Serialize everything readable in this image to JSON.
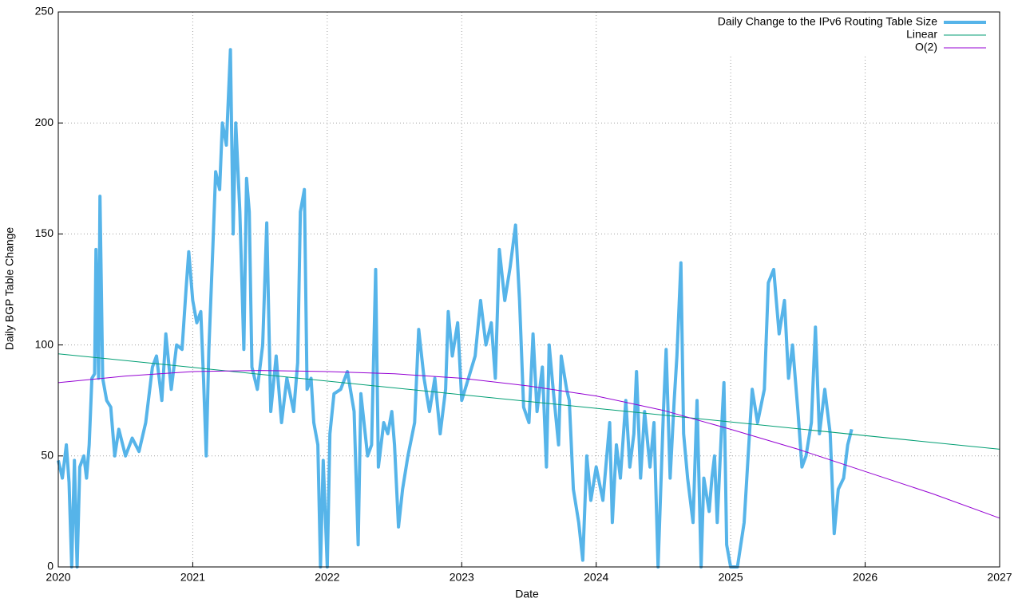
{
  "chart_data": {
    "type": "line",
    "xlabel": "Date",
    "ylabel": "Daily BGP Table Change",
    "xlim": [
      2020,
      2027
    ],
    "xticks": [
      2020,
      2021,
      2022,
      2023,
      2024,
      2025,
      2026,
      2027
    ],
    "ylim": [
      0,
      250
    ],
    "yticks": [
      0,
      50,
      100,
      150,
      200,
      250
    ],
    "grid": true,
    "legend": "top-right",
    "series": [
      {
        "name": "Daily Change to the IPv6 Routing Table Size",
        "color": "#56b4e9",
        "width": 4,
        "x": [
          2020.0,
          2020.03,
          2020.06,
          2020.08,
          2020.1,
          2020.12,
          2020.14,
          2020.16,
          2020.19,
          2020.21,
          2020.23,
          2020.25,
          2020.27,
          2020.28,
          2020.3,
          2020.31,
          2020.33,
          2020.36,
          2020.39,
          2020.42,
          2020.45,
          2020.5,
          2020.55,
          2020.6,
          2020.65,
          2020.7,
          2020.73,
          2020.77,
          2020.8,
          2020.84,
          2020.88,
          2020.92,
          2020.95,
          2020.97,
          2021.0,
          2021.03,
          2021.06,
          2021.08,
          2021.1,
          2021.12,
          2021.15,
          2021.17,
          2021.2,
          2021.22,
          2021.25,
          2021.28,
          2021.3,
          2021.32,
          2021.35,
          2021.38,
          2021.4,
          2021.42,
          2021.44,
          2021.48,
          2021.52,
          2021.55,
          2021.58,
          2021.62,
          2021.66,
          2021.7,
          2021.75,
          2021.78,
          2021.8,
          2021.83,
          2021.85,
          2021.88,
          2021.9,
          2021.93,
          2021.95,
          2021.97,
          2022.0,
          2022.02,
          2022.05,
          2022.1,
          2022.15,
          2022.2,
          2022.23,
          2022.25,
          2022.3,
          2022.33,
          2022.36,
          2022.38,
          2022.42,
          2022.45,
          2022.48,
          2022.5,
          2022.53,
          2022.56,
          2022.6,
          2022.65,
          2022.68,
          2022.72,
          2022.76,
          2022.8,
          2022.84,
          2022.88,
          2022.9,
          2022.93,
          2022.97,
          2023.0,
          2023.05,
          2023.1,
          2023.14,
          2023.18,
          2023.22,
          2023.25,
          2023.28,
          2023.32,
          2023.36,
          2023.4,
          2023.43,
          2023.46,
          2023.5,
          2023.53,
          2023.56,
          2023.6,
          2023.63,
          2023.65,
          2023.68,
          2023.72,
          2023.74,
          2023.78,
          2023.8,
          2023.83,
          2023.87,
          2023.9,
          2023.93,
          2023.96,
          2024.0,
          2024.05,
          2024.1,
          2024.12,
          2024.15,
          2024.18,
          2024.22,
          2024.25,
          2024.28,
          2024.3,
          2024.33,
          2024.36,
          2024.4,
          2024.43,
          2024.46,
          2024.5,
          2024.52,
          2024.55,
          2024.58,
          2024.6,
          2024.63,
          2024.65,
          2024.68,
          2024.72,
          2024.75,
          2024.78,
          2024.8,
          2024.84,
          2024.86,
          2024.88,
          2024.9,
          2024.93,
          2024.95,
          2024.97,
          2025.0,
          2025.05,
          2025.1,
          2025.13,
          2025.16,
          2025.2,
          2025.25,
          2025.28,
          2025.32,
          2025.36,
          2025.4,
          2025.43,
          2025.46,
          2025.5,
          2025.53,
          2025.56,
          2025.6,
          2025.63,
          2025.66,
          2025.7,
          2025.74,
          2025.77,
          2025.8,
          2025.84,
          2025.87,
          2025.9
        ],
        "values": [
          48,
          40,
          55,
          38,
          0,
          48,
          0,
          45,
          50,
          40,
          55,
          85,
          87,
          143,
          85,
          167,
          85,
          75,
          72,
          50,
          62,
          50,
          58,
          52,
          65,
          90,
          95,
          75,
          105,
          80,
          100,
          98,
          125,
          142,
          120,
          110,
          115,
          85,
          50,
          98,
          145,
          178,
          170,
          200,
          190,
          233,
          150,
          200,
          160,
          98,
          175,
          160,
          90,
          80,
          100,
          155,
          70,
          95,
          65,
          85,
          70,
          92,
          160,
          170,
          80,
          85,
          65,
          55,
          0,
          48,
          0,
          60,
          78,
          80,
          88,
          70,
          10,
          78,
          50,
          55,
          134,
          45,
          65,
          60,
          70,
          55,
          18,
          35,
          50,
          65,
          107,
          85,
          70,
          85,
          60,
          80,
          115,
          95,
          110,
          75,
          85,
          95,
          120,
          100,
          110,
          85,
          143,
          120,
          135,
          154,
          120,
          72,
          65,
          105,
          70,
          90,
          45,
          100,
          80,
          55,
          95,
          80,
          75,
          35,
          20,
          3,
          50,
          30,
          45,
          30,
          65,
          20,
          55,
          40,
          75,
          45,
          60,
          88,
          40,
          70,
          45,
          65,
          0,
          70,
          98,
          40,
          75,
          95,
          137,
          60,
          40,
          20,
          75,
          0,
          40,
          25,
          40,
          50,
          20,
          60,
          83,
          10,
          0,
          0,
          20,
          50,
          80,
          65,
          80,
          128,
          134,
          105,
          120,
          85,
          100,
          70,
          45,
          50,
          65,
          108,
          60,
          80,
          60,
          15,
          35,
          40,
          55,
          62
        ]
      },
      {
        "name": "Linear",
        "color": "#009e73",
        "width": 1,
        "x": [
          2020,
          2027
        ],
        "values": [
          96,
          53
        ]
      },
      {
        "name": "O(2)",
        "color": "#9400d3",
        "width": 1,
        "x": [
          2020,
          2020.5,
          2021,
          2021.5,
          2022,
          2022.5,
          2023,
          2023.5,
          2024,
          2024.5,
          2025,
          2025.5,
          2026,
          2026.5,
          2027
        ],
        "values": [
          83,
          86,
          88,
          88.5,
          88,
          87,
          85,
          81.5,
          77,
          70.5,
          62,
          53,
          43,
          33,
          22
        ]
      }
    ]
  }
}
